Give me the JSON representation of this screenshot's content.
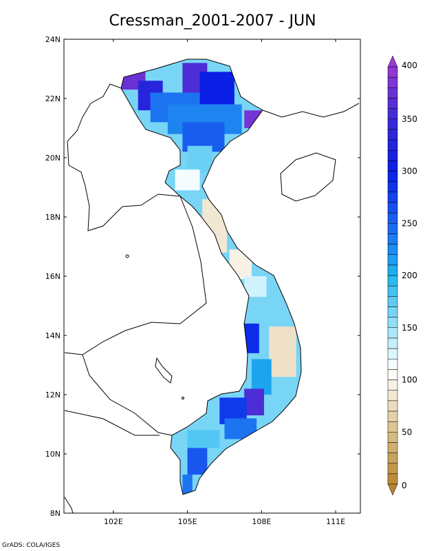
{
  "title": "Cressman_2001-2007 - JUN",
  "credit": "GrADS: COLA/IGES",
  "map": {
    "lon_range": [
      100,
      112
    ],
    "lat_range": [
      8,
      24
    ],
    "lon_ticks": [
      {
        "value": 102,
        "label": "102E"
      },
      {
        "value": 105,
        "label": "105E"
      },
      {
        "value": 108,
        "label": "108E"
      },
      {
        "value": 111,
        "label": "111E"
      }
    ],
    "lat_ticks": [
      {
        "value": 8,
        "label": "8N"
      },
      {
        "value": 10,
        "label": "10N"
      },
      {
        "value": 12,
        "label": "12N"
      },
      {
        "value": 14,
        "label": "14N"
      },
      {
        "value": 16,
        "label": "16N"
      },
      {
        "value": 18,
        "label": "18N"
      },
      {
        "value": 20,
        "label": "20N"
      },
      {
        "value": 22,
        "label": "22N"
      },
      {
        "value": 24,
        "label": "24N"
      }
    ]
  },
  "colorbar": {
    "min": 0,
    "max": 400,
    "labels": [
      {
        "value": 0,
        "label": "0"
      },
      {
        "value": 50,
        "label": "50"
      },
      {
        "value": 100,
        "label": "100"
      },
      {
        "value": 150,
        "label": "150"
      },
      {
        "value": 200,
        "label": "200"
      },
      {
        "value": 250,
        "label": "250"
      },
      {
        "value": 300,
        "label": "300"
      },
      {
        "value": 350,
        "label": "350"
      },
      {
        "value": 400,
        "label": "400"
      }
    ],
    "stops": [
      {
        "value": 0,
        "color": "#b8862e"
      },
      {
        "value": 50,
        "color": "#d9c08a"
      },
      {
        "value": 90,
        "color": "#f5ecdc"
      },
      {
        "value": 110,
        "color": "#ffffff"
      },
      {
        "value": 140,
        "color": "#b8ecfb"
      },
      {
        "value": 200,
        "color": "#1fb4ef"
      },
      {
        "value": 250,
        "color": "#1b64f0"
      },
      {
        "value": 300,
        "color": "#0a1ee6"
      },
      {
        "value": 350,
        "color": "#3a2ad6"
      },
      {
        "value": 400,
        "color": "#9a3ad2"
      }
    ]
  },
  "field": [
    {
      "lat": [
        22.3,
        22.9
      ],
      "lon": [
        102.3,
        103.3
      ],
      "v": 375
    },
    {
      "lat": [
        21.6,
        22.6
      ],
      "lon": [
        103.0,
        104.0
      ],
      "v": 330
    },
    {
      "lat": [
        22.0,
        23.2
      ],
      "lon": [
        104.8,
        105.8
      ],
      "v": 360
    },
    {
      "lat": [
        21.8,
        22.9
      ],
      "lon": [
        105.5,
        106.9
      ],
      "v": 300
    },
    {
      "lat": [
        21.2,
        22.2
      ],
      "lon": [
        103.5,
        105.5
      ],
      "v": 240
    },
    {
      "lat": [
        20.8,
        21.8
      ],
      "lon": [
        104.2,
        107.2
      ],
      "v": 230
    },
    {
      "lat": [
        20.2,
        21.2
      ],
      "lon": [
        104.8,
        106.5
      ],
      "v": 255
    },
    {
      "lat": [
        21.0,
        21.6
      ],
      "lon": [
        107.3,
        108.0
      ],
      "v": 380
    },
    {
      "lat": [
        19.5,
        20.4
      ],
      "lon": [
        105.0,
        106.0
      ],
      "v": 170
    },
    {
      "lat": [
        18.9,
        19.6
      ],
      "lon": [
        104.5,
        105.5
      ],
      "v": 115
    },
    {
      "lat": [
        16.8,
        18.6
      ],
      "lon": [
        105.6,
        106.6
      ],
      "v": 85
    },
    {
      "lat": [
        15.9,
        16.9
      ],
      "lon": [
        106.7,
        107.6
      ],
      "v": 95
    },
    {
      "lat": [
        15.3,
        16.0
      ],
      "lon": [
        107.3,
        108.2
      ],
      "v": 130
    },
    {
      "lat": [
        14.4,
        15.3
      ],
      "lon": [
        107.8,
        108.6
      ],
      "v": 165
    },
    {
      "lat": [
        13.4,
        14.4
      ],
      "lon": [
        107.3,
        107.9
      ],
      "v": 290
    },
    {
      "lat": [
        12.6,
        14.3
      ],
      "lon": [
        108.3,
        109.4
      ],
      "v": 80
    },
    {
      "lat": [
        12.0,
        13.2
      ],
      "lon": [
        107.6,
        108.4
      ],
      "v": 210
    },
    {
      "lat": [
        11.3,
        12.2
      ],
      "lon": [
        107.3,
        108.1
      ],
      "v": 360
    },
    {
      "lat": [
        11.0,
        11.9
      ],
      "lon": [
        106.3,
        107.4
      ],
      "v": 280
    },
    {
      "lat": [
        10.5,
        11.2
      ],
      "lon": [
        106.5,
        107.8
      ],
      "v": 240
    },
    {
      "lat": [
        10.2,
        10.8
      ],
      "lon": [
        105.0,
        106.3
      ],
      "v": 180
    },
    {
      "lat": [
        9.3,
        10.2
      ],
      "lon": [
        105.0,
        105.8
      ],
      "v": 260
    },
    {
      "lat": [
        8.6,
        9.3
      ],
      "lon": [
        104.8,
        105.2
      ],
      "v": 240
    }
  ]
}
